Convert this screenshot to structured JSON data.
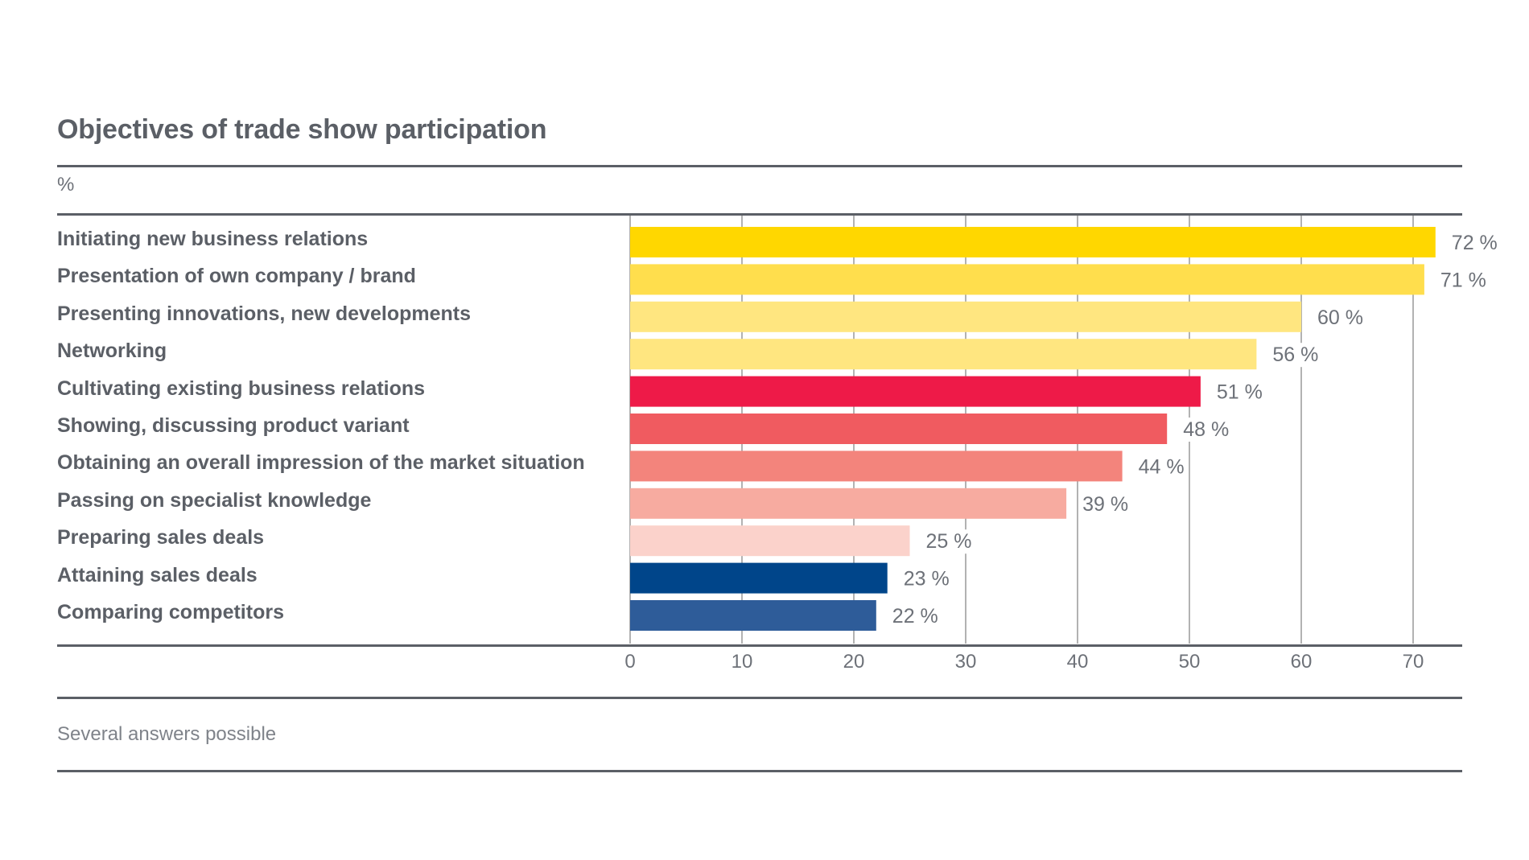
{
  "chart_data": {
    "type": "bar",
    "orientation": "horizontal",
    "title": "Objectives of trade show participation",
    "unit_label": "%",
    "footnote": "Several answers possible",
    "categories": [
      "Initiating new business relations",
      "Presentation of own company / brand",
      "Presenting innovations, new developments",
      "Networking",
      "Cultivating existing business relations",
      "Showing, discussing product variant",
      "Obtaining an overall impression of the market situation",
      "Passing on specialist knowledge",
      "Preparing sales deals",
      "Attaining sales deals",
      "Comparing competitors"
    ],
    "values": [
      72,
      71,
      60,
      56,
      51,
      48,
      44,
      39,
      25,
      23,
      22
    ],
    "value_labels": [
      "72 %",
      "71 %",
      "60 %",
      "56 %",
      "51 %",
      "48 %",
      "44 %",
      "39 %",
      "25 %",
      "23 %",
      "22 %"
    ],
    "colors": [
      "#ffd700",
      "#ffde4d",
      "#ffe680",
      "#ffe680",
      "#ee1a48",
      "#f05b60",
      "#f3847c",
      "#f7aba0",
      "#fbd2cb",
      "#00458a",
      "#2e5c99"
    ],
    "xticks": [
      0,
      10,
      20,
      30,
      40,
      50,
      60,
      70
    ],
    "xlim": [
      0,
      72
    ],
    "grid": true,
    "grid_color": "#999999"
  }
}
